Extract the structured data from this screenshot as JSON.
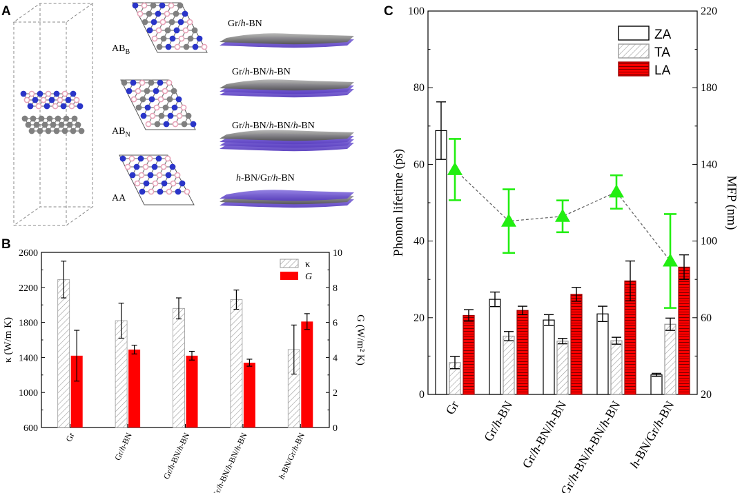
{
  "panels": {
    "a": {
      "letter": "A",
      "stackings": [
        {
          "label": "AB",
          "sub": "B"
        },
        {
          "label": "AB",
          "sub": "N"
        },
        {
          "label": "AA",
          "sub": ""
        }
      ],
      "structures": [
        "Gr/h-BN",
        "Gr/h-BN/h-BN",
        "Gr/h-BN/h-BN/h-BN",
        "h-BN/Gr/h-BN"
      ]
    },
    "b": {
      "letter": "B"
    },
    "c": {
      "letter": "C"
    }
  },
  "chart_data": [
    {
      "type": "bar",
      "panel": "B",
      "categories": [
        "Gr",
        "Gr/h-BN",
        "Gr/h-BN/h-BN",
        "Gr/h-BN/h-BN/h-BN",
        "h-BN/Gr/h-BN"
      ],
      "ylabel": "κ (W/m K)",
      "y2label": "G (W/m² K)",
      "ylim": [
        600,
        2600
      ],
      "yticks": [
        600,
        1000,
        1400,
        1800,
        2200,
        2600
      ],
      "y2lim": [
        0,
        10
      ],
      "y2ticks": [
        0,
        2,
        4,
        6,
        8,
        10
      ],
      "legend_position": "top-right",
      "series": [
        {
          "name": "κ",
          "axis": "left",
          "pattern": "hatched",
          "values": [
            2290,
            1820,
            1960,
            2060,
            1490
          ],
          "errors": [
            210,
            200,
            120,
            110,
            280
          ]
        },
        {
          "name": "G",
          "axis": "right",
          "color": "#ff0000",
          "values": [
            4.1,
            4.45,
            4.1,
            3.7,
            6.05
          ],
          "errors": [
            1.45,
            0.25,
            0.25,
            0.2,
            0.45
          ]
        }
      ]
    },
    {
      "type": "bar",
      "panel": "C",
      "categories": [
        "Gr",
        "Gr/h-BN",
        "Gr/h-BN/h-BN",
        "Gr/h-BN/h-BN/h-BN",
        "h-BN/Gr/h-BN"
      ],
      "ylabel": "Phonon lifetime (ps)",
      "y2label": "MFP (nm)",
      "ylim": [
        0,
        100
      ],
      "yticks": [
        0,
        20,
        40,
        60,
        80,
        100
      ],
      "y2lim": [
        20,
        220
      ],
      "y2ticks": [
        20,
        60,
        100,
        140,
        180,
        220
      ],
      "legend_position": "top-right",
      "series": [
        {
          "name": "ZA",
          "pattern": "open",
          "values": [
            68.8,
            24.8,
            19.4,
            21.0,
            5.1
          ],
          "errors": [
            7.5,
            1.9,
            1.4,
            2.0,
            0.4
          ]
        },
        {
          "name": "TA",
          "pattern": "hatched",
          "values": [
            8.3,
            15.2,
            13.9,
            14.0,
            18.3
          ],
          "errors": [
            1.6,
            1.2,
            0.7,
            0.9,
            1.6
          ]
        },
        {
          "name": "LA",
          "pattern": "red-horizontal-lines",
          "values": [
            20.6,
            21.9,
            26.1,
            29.6,
            33.2
          ],
          "errors": [
            1.5,
            1.1,
            1.8,
            5.2,
            3.2
          ]
        },
        {
          "name": "MFP",
          "axis": "right",
          "type": "line",
          "marker": "triangle",
          "color": "#22ee11",
          "values": [
            137.3,
            110.4,
            112.9,
            125.6,
            89.6
          ],
          "errors": [
            16.0,
            16.6,
            8.3,
            8.7,
            24.5
          ]
        }
      ]
    }
  ]
}
